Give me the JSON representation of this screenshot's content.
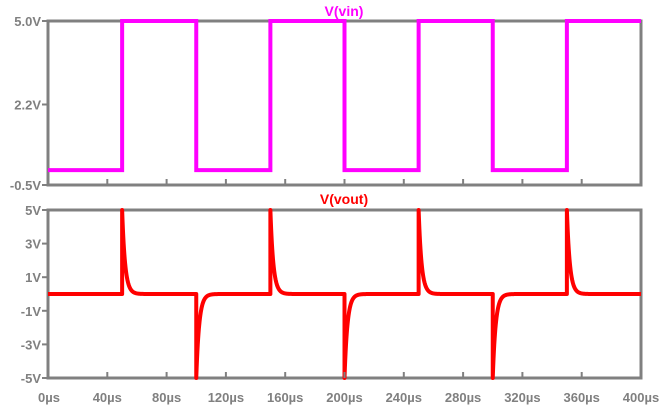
{
  "chart_data": [
    {
      "type": "line",
      "title": "V(vin)",
      "title_color": "#ff00ff",
      "xlim": [
        0,
        400
      ],
      "x_unit": "µs",
      "ylim": [
        -0.5,
        5.0
      ],
      "yticks": [
        5.0,
        2.2,
        -0.5
      ],
      "ytick_labels": [
        "5.0V",
        "2.2V",
        "-0.5V"
      ],
      "grid": false,
      "series": [
        {
          "name": "V(vin)",
          "color": "#ff00ff",
          "x": [
            0,
            50,
            50,
            100,
            100,
            150,
            150,
            200,
            200,
            250,
            250,
            300,
            300,
            350,
            350,
            400
          ],
          "y": [
            0,
            0,
            5,
            5,
            0,
            0,
            5,
            5,
            0,
            0,
            5,
            5,
            0,
            0,
            5,
            5
          ]
        }
      ]
    },
    {
      "type": "line",
      "title": "V(vout)",
      "title_color": "#ff0000",
      "xlim": [
        0,
        400
      ],
      "x_unit": "µs",
      "xticks": [
        0,
        40,
        80,
        120,
        160,
        200,
        240,
        280,
        320,
        360,
        400
      ],
      "xtick_labels": [
        "0µs",
        "40µs",
        "80µs",
        "120µs",
        "160µs",
        "200µs",
        "240µs",
        "280µs",
        "320µs",
        "360µs",
        "400µs"
      ],
      "ylim": [
        -5,
        5
      ],
      "yticks": [
        5,
        3,
        1,
        -1,
        -3,
        -5
      ],
      "ytick_labels": [
        "5V",
        "3V",
        "1V",
        "-1V",
        "-3V",
        "-5V"
      ],
      "grid": false,
      "series": [
        {
          "name": "V(vout)",
          "color": "#ff0000",
          "baseline": 0,
          "spike_amplitude": 5,
          "decay_time_constant": 2,
          "edges": [
            {
              "t": 50,
              "direction": 1
            },
            {
              "t": 100,
              "direction": -1
            },
            {
              "t": 150,
              "direction": 1
            },
            {
              "t": 200,
              "direction": -1
            },
            {
              "t": 250,
              "direction": 1
            },
            {
              "t": 300,
              "direction": -1
            },
            {
              "t": 350,
              "direction": 1
            }
          ]
        }
      ]
    }
  ]
}
